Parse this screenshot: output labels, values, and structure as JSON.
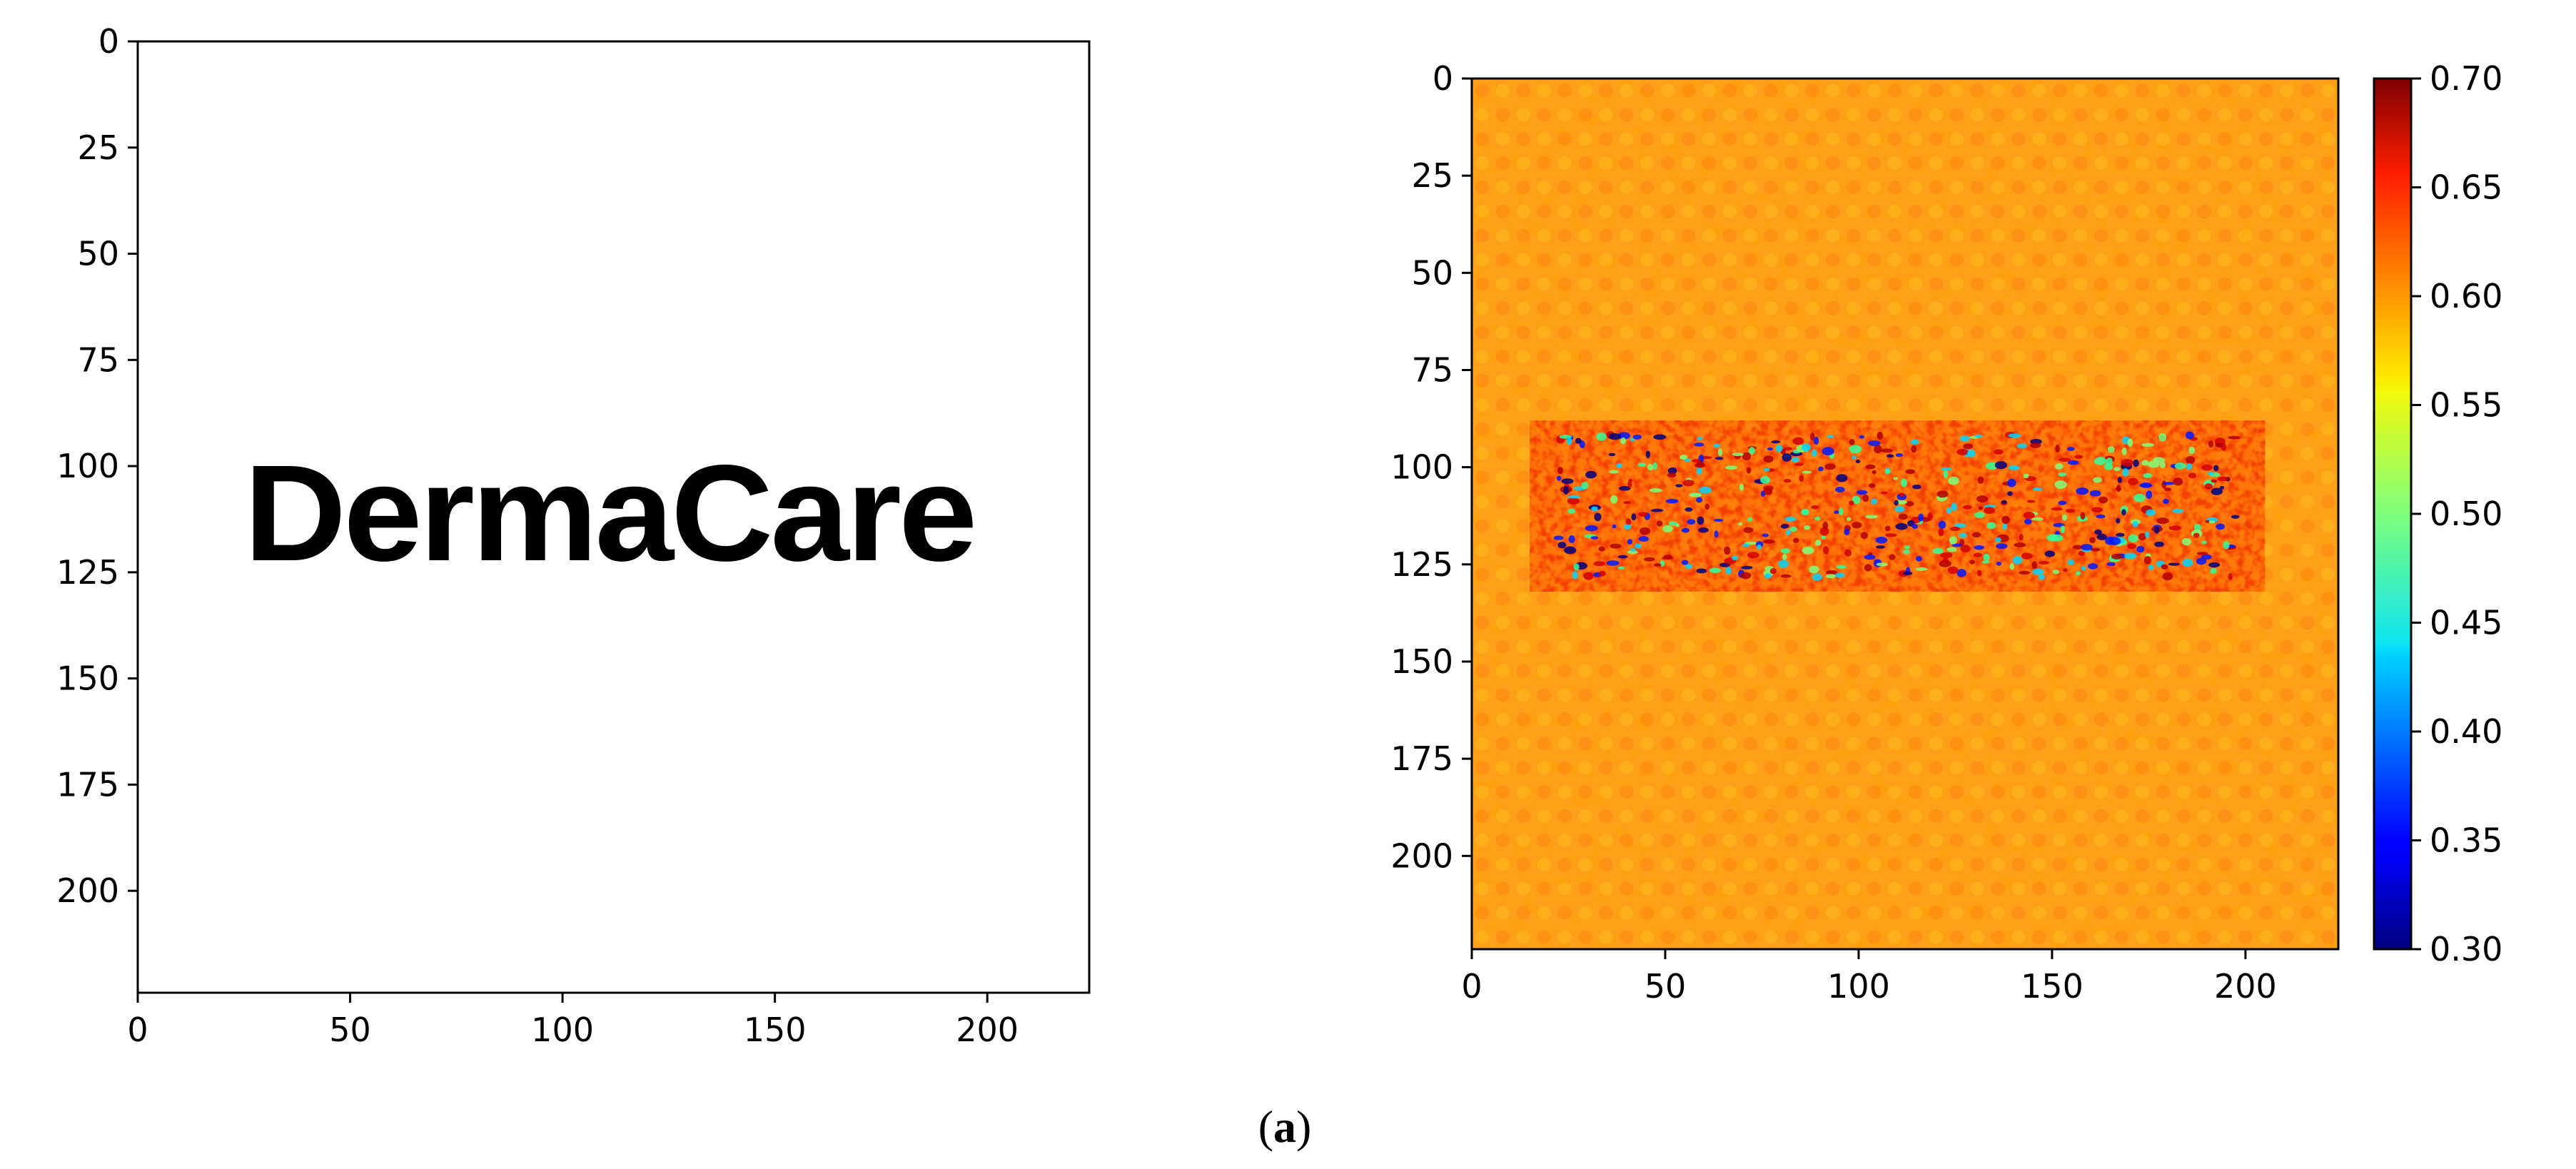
{
  "caption": {
    "open": "(",
    "letter": "a",
    "close": ")"
  },
  "chart_data": [
    {
      "type": "image",
      "image_text": "DermaCare",
      "background": "#ffffff",
      "x_ticks": [
        0,
        50,
        100,
        150,
        200
      ],
      "y_ticks": [
        0,
        25,
        50,
        75,
        100,
        125,
        150,
        175,
        200
      ],
      "xlim": [
        0,
        224
      ],
      "ylim": [
        224,
        0
      ],
      "text_box": {
        "x": [
          25,
          197
        ],
        "y": [
          99,
          123
        ]
      }
    },
    {
      "type": "heatmap",
      "colormap": "jet",
      "x_ticks": [
        0,
        50,
        100,
        150,
        200
      ],
      "y_ticks": [
        0,
        25,
        50,
        75,
        100,
        125,
        150,
        175,
        200
      ],
      "xlim": [
        0,
        224
      ],
      "ylim": [
        224,
        0
      ],
      "colorbar": {
        "min": 0.3,
        "max": 0.7,
        "ticks": [
          "0.70",
          "0.65",
          "0.60",
          "0.55",
          "0.50",
          "0.45",
          "0.40",
          "0.35",
          "0.30"
        ]
      },
      "background_value": 0.615,
      "text_region": {
        "x": [
          15,
          205
        ],
        "y": [
          88,
          132
        ]
      }
    }
  ]
}
